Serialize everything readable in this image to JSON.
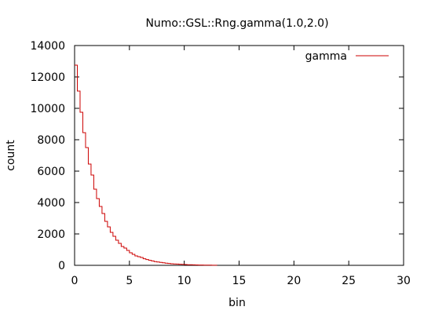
{
  "chart_data": {
    "type": "line",
    "title": "Numo::GSL::Rng.gamma(1.0,2.0)",
    "xlabel": "bin",
    "ylabel": "count",
    "xlim": [
      0,
      30
    ],
    "ylim": [
      0,
      14000
    ],
    "xticks": [
      0,
      5,
      10,
      15,
      20,
      25,
      30
    ],
    "yticks": [
      0,
      2000,
      4000,
      6000,
      8000,
      10000,
      12000,
      14000
    ],
    "grid": false,
    "legend": "top-right",
    "series": [
      {
        "name": "gamma",
        "color": "#cc0000",
        "step": true,
        "bin_width": 0.25,
        "x": [
          0.0,
          0.25,
          0.5,
          0.75,
          1.0,
          1.25,
          1.5,
          1.75,
          2.0,
          2.25,
          2.5,
          2.75,
          3.0,
          3.25,
          3.5,
          3.75,
          4.0,
          4.25,
          4.5,
          4.75,
          5.0,
          5.25,
          5.5,
          5.75,
          6.0,
          6.25,
          6.5,
          6.75,
          7.0,
          7.25,
          7.5,
          7.75,
          8.0,
          8.25,
          8.5,
          8.75,
          9.0,
          9.25,
          9.5,
          9.75,
          10.0,
          10.25,
          10.5,
          10.75,
          11.0,
          11.25,
          11.5,
          11.75,
          12.0,
          12.25,
          12.5,
          12.75
        ],
        "values": [
          12750,
          11100,
          9750,
          8450,
          7500,
          6450,
          5750,
          4850,
          4250,
          3750,
          3300,
          2800,
          2450,
          2100,
          1850,
          1600,
          1400,
          1200,
          1100,
          950,
          800,
          700,
          600,
          550,
          500,
          420,
          370,
          320,
          280,
          240,
          210,
          190,
          160,
          140,
          120,
          100,
          90,
          80,
          70,
          60,
          50,
          40,
          35,
          30,
          25,
          20,
          18,
          15,
          12,
          10,
          8,
          5
        ]
      }
    ]
  }
}
